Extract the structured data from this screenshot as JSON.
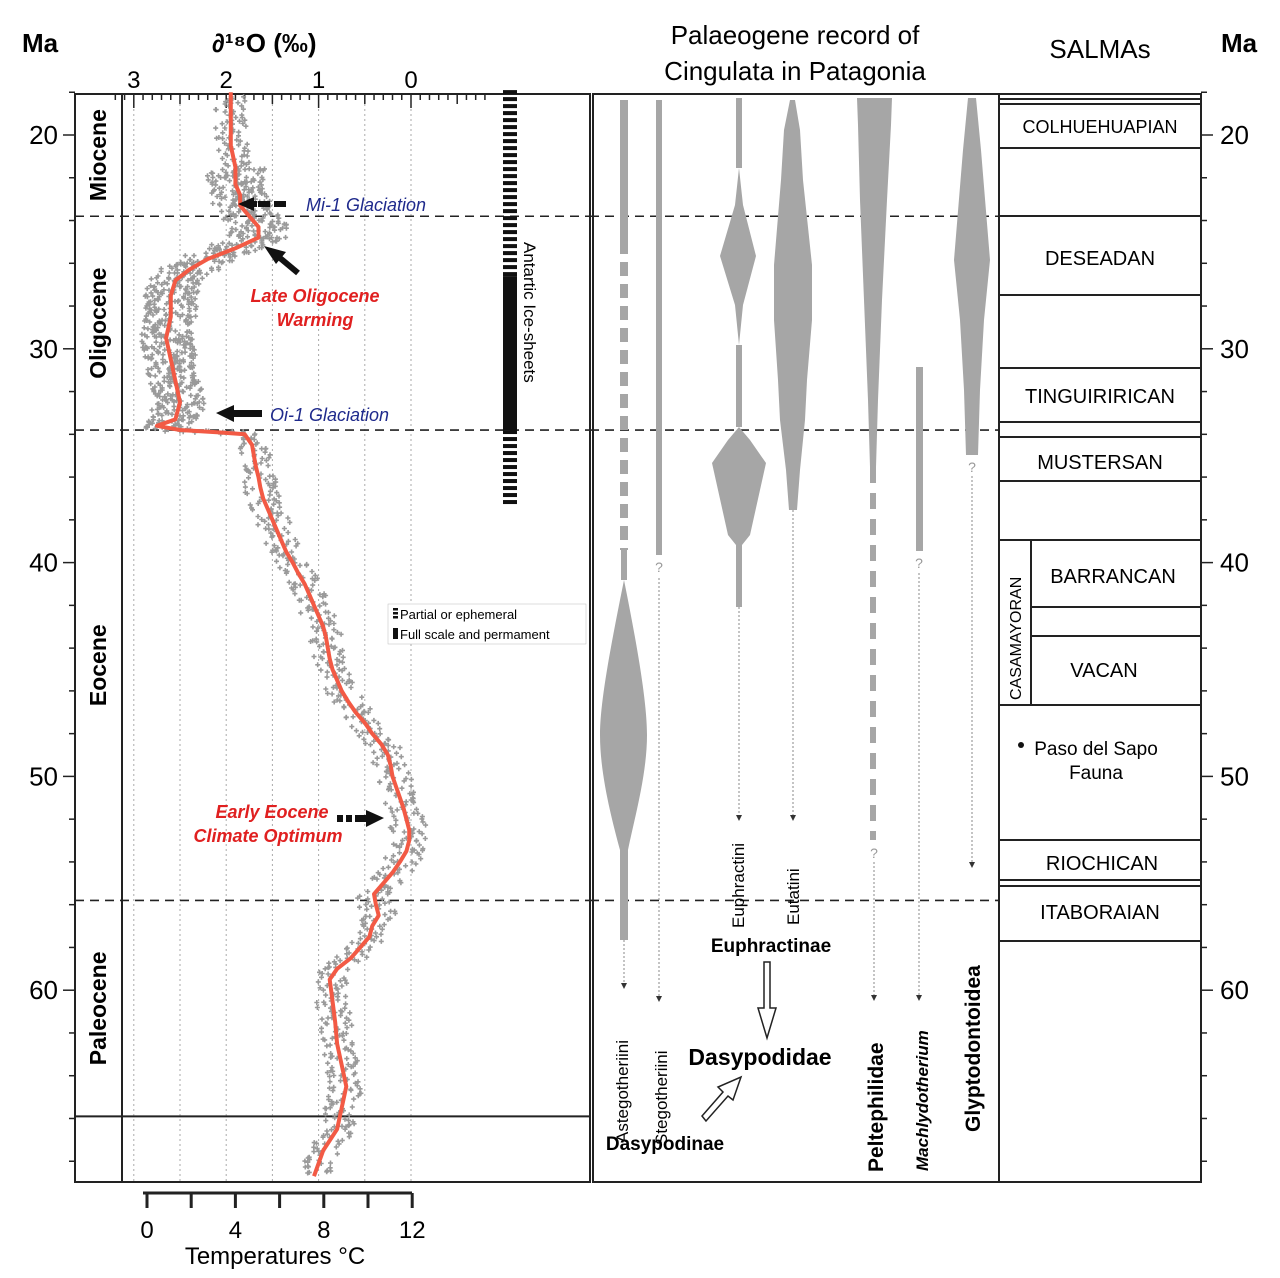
{
  "header": {
    "ma_left": "Ma",
    "ma_right": "Ma",
    "d18o_axis": "∂¹⁸O (‰)",
    "record_title_line1": "Palaeogene record of",
    "record_title_line2": "Cingulata in Patagonia",
    "salmas_title": "SALMAs"
  },
  "age_axis": {
    "ticks": [
      20,
      30,
      40,
      50,
      60
    ],
    "range": [
      17.9,
      68.8
    ]
  },
  "epochs": [
    {
      "name": "Miocene",
      "top": 17.9,
      "bottom": 23.8
    },
    {
      "name": "Oligocene",
      "top": 23.8,
      "bottom": 33.8
    },
    {
      "name": "Eocene",
      "top": 33.8,
      "bottom": 55.8
    },
    {
      "name": "Paleocene",
      "top": 55.8,
      "bottom": 65.9
    }
  ],
  "d18o_axis": {
    "ticks": [
      3,
      2,
      1,
      0
    ],
    "range": [
      3.3,
      -0.9
    ]
  },
  "temp_axis": {
    "ticks": [
      0,
      4,
      8,
      12
    ],
    "title": "Temperatures °C"
  },
  "chart_data": {
    "type": "scatter",
    "xlabel": "∂¹⁸O (‰)",
    "ylabel": "Ma",
    "x_reversed": true,
    "series": [
      {
        "kind": "smoothed_curve",
        "color": "#f25a45",
        "points": [
          [
            68.7,
            1.05
          ],
          [
            67.5,
            0.95
          ],
          [
            66.5,
            0.8
          ],
          [
            65.5,
            0.75
          ],
          [
            64.5,
            0.7
          ],
          [
            63.5,
            0.75
          ],
          [
            62.5,
            0.8
          ],
          [
            61.5,
            0.82
          ],
          [
            60.5,
            0.85
          ],
          [
            59.5,
            0.88
          ],
          [
            59.0,
            0.8
          ],
          [
            58.5,
            0.65
          ],
          [
            58.0,
            0.55
          ],
          [
            57.5,
            0.45
          ],
          [
            57.0,
            0.42
          ],
          [
            56.5,
            0.35
          ],
          [
            56.0,
            0.38
          ],
          [
            55.5,
            0.4
          ],
          [
            55.0,
            0.3
          ],
          [
            54.5,
            0.2
          ],
          [
            54.0,
            0.12
          ],
          [
            53.5,
            0.05
          ],
          [
            53.0,
            0.02
          ],
          [
            52.5,
            0.02
          ],
          [
            52.0,
            0.05
          ],
          [
            51.5,
            0.08
          ],
          [
            51.0,
            0.12
          ],
          [
            50.5,
            0.16
          ],
          [
            50.0,
            0.2
          ],
          [
            49.5,
            0.22
          ],
          [
            49.0,
            0.25
          ],
          [
            48.5,
            0.32
          ],
          [
            48.0,
            0.42
          ],
          [
            47.5,
            0.5
          ],
          [
            47.0,
            0.6
          ],
          [
            46.5,
            0.68
          ],
          [
            46.0,
            0.75
          ],
          [
            45.5,
            0.8
          ],
          [
            45.0,
            0.85
          ],
          [
            44.5,
            0.88
          ],
          [
            44.0,
            0.9
          ],
          [
            43.5,
            0.92
          ],
          [
            43.0,
            0.95
          ],
          [
            42.5,
            1.0
          ],
          [
            42.0,
            1.05
          ],
          [
            41.5,
            1.1
          ],
          [
            41.0,
            1.15
          ],
          [
            40.5,
            1.22
          ],
          [
            40.0,
            1.28
          ],
          [
            39.5,
            1.35
          ],
          [
            39.0,
            1.4
          ],
          [
            38.5,
            1.45
          ],
          [
            38.0,
            1.5
          ],
          [
            37.5,
            1.55
          ],
          [
            37.0,
            1.6
          ],
          [
            36.5,
            1.63
          ],
          [
            36.0,
            1.65
          ],
          [
            35.5,
            1.68
          ],
          [
            35.0,
            1.7
          ],
          [
            34.5,
            1.72
          ],
          [
            34.0,
            1.8
          ],
          [
            33.9,
            2.1
          ],
          [
            33.8,
            2.5
          ],
          [
            33.6,
            2.75
          ],
          [
            33.3,
            2.55
          ],
          [
            32.5,
            2.5
          ],
          [
            31.5,
            2.55
          ],
          [
            30.5,
            2.6
          ],
          [
            29.5,
            2.65
          ],
          [
            28.5,
            2.6
          ],
          [
            27.5,
            2.6
          ],
          [
            26.8,
            2.55
          ],
          [
            26.3,
            2.4
          ],
          [
            25.8,
            2.2
          ],
          [
            25.3,
            1.9
          ],
          [
            24.8,
            1.65
          ],
          [
            24.3,
            1.65
          ],
          [
            23.8,
            1.75
          ],
          [
            23.3,
            1.85
          ],
          [
            22.8,
            1.85
          ],
          [
            22.3,
            1.9
          ],
          [
            21.5,
            1.9
          ],
          [
            20.5,
            1.95
          ],
          [
            19.5,
            1.95
          ],
          [
            18.5,
            1.95
          ],
          [
            18.0,
            1.95
          ]
        ]
      }
    ]
  },
  "annotations": {
    "mi1": "Mi-1 Glaciation",
    "oi1": "Oi-1 Glaciation",
    "late_olig_line1": "Late Oligocene",
    "late_olig_line2": "Warming",
    "eeco_line1": "Early Eocene",
    "eeco_line2": "Climate Optimum",
    "ice_sheets": "Antartic Ice-sheets",
    "legend_partial": "Partial or ephemeral",
    "legend_full": "Full scale and permament"
  },
  "taxa": {
    "astegotheriini": "Astegotheriini",
    "stegotheriini": "Stegotheriini",
    "euphractini": "Euphractini",
    "eutatini": "Eutatini",
    "euphractinae": "Euphractinae",
    "dasypodidae": "Dasypodidae",
    "dasypodinae": "Dasypodinae",
    "peltephilidae": "Peltephilidae",
    "machlydotherium": "Machlydotherium",
    "glyptodontoidea": "Glyptodontoidea",
    "question_mark": "?"
  },
  "salmas": {
    "colhuehuapian": "COLHUEHUAPIAN",
    "deseadan": "DESEADAN",
    "tinguirirican": "TINGUIRIRICAN",
    "mustersan": "MUSTERSAN",
    "casamayoran": "CASAMAYORAN",
    "barrancan": "BARRANCAN",
    "vacan": "VACAN",
    "paso_line1": "Paso del Sapo",
    "paso_line2": "Fauna",
    "riochican": "RIOCHICAN",
    "itaboraian": "ITABORAIAN"
  },
  "colors": {
    "curve": "#f25a45",
    "scatter": "#9a9a9a",
    "spindle": "#a6a6a6",
    "glaciation_label": "#1f2a8c",
    "warming_label": "#e02020"
  }
}
